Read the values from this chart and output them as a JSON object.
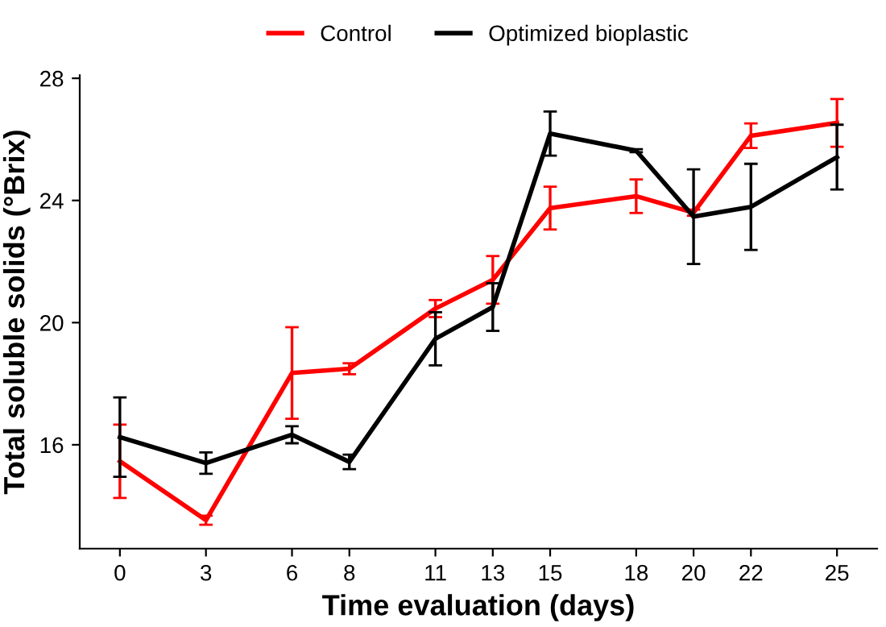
{
  "chart_data": {
    "type": "line",
    "xlabel": "Time evaluation (days)",
    "ylabel": "Total soluble solids (°Brix)",
    "x": [
      0,
      3,
      6,
      8,
      11,
      13,
      15,
      18,
      20,
      22,
      25
    ],
    "series": [
      {
        "name": "Control",
        "color": "#ff0000",
        "values": [
          15.46,
          13.53,
          18.35,
          18.49,
          20.46,
          21.4,
          23.75,
          24.14,
          23.6,
          26.12,
          26.54
        ],
        "errors": [
          1.2,
          0.15,
          1.5,
          0.18,
          0.28,
          0.78,
          0.7,
          0.55,
          0.1,
          0.4,
          0.78
        ]
      },
      {
        "name": "Optimized bioplastic",
        "color": "#000000",
        "values": [
          16.25,
          15.4,
          16.33,
          15.44,
          19.47,
          20.51,
          26.19,
          25.63,
          23.47,
          23.79,
          25.42
        ],
        "errors": [
          1.3,
          0.35,
          0.28,
          0.24,
          0.87,
          0.78,
          0.72,
          0.05,
          1.55,
          1.41,
          1.06
        ]
      }
    ],
    "xlim": [
      -1.4,
      26.4
    ],
    "xticks": [
      0,
      3,
      6,
      8,
      11,
      13,
      15,
      18,
      20,
      22,
      25
    ],
    "ylim": [
      12.6,
      28.1
    ],
    "yticks": [
      16,
      20,
      24,
      28
    ],
    "grid": false,
    "legend": "top",
    "marker": "none",
    "line_style": "solid"
  }
}
